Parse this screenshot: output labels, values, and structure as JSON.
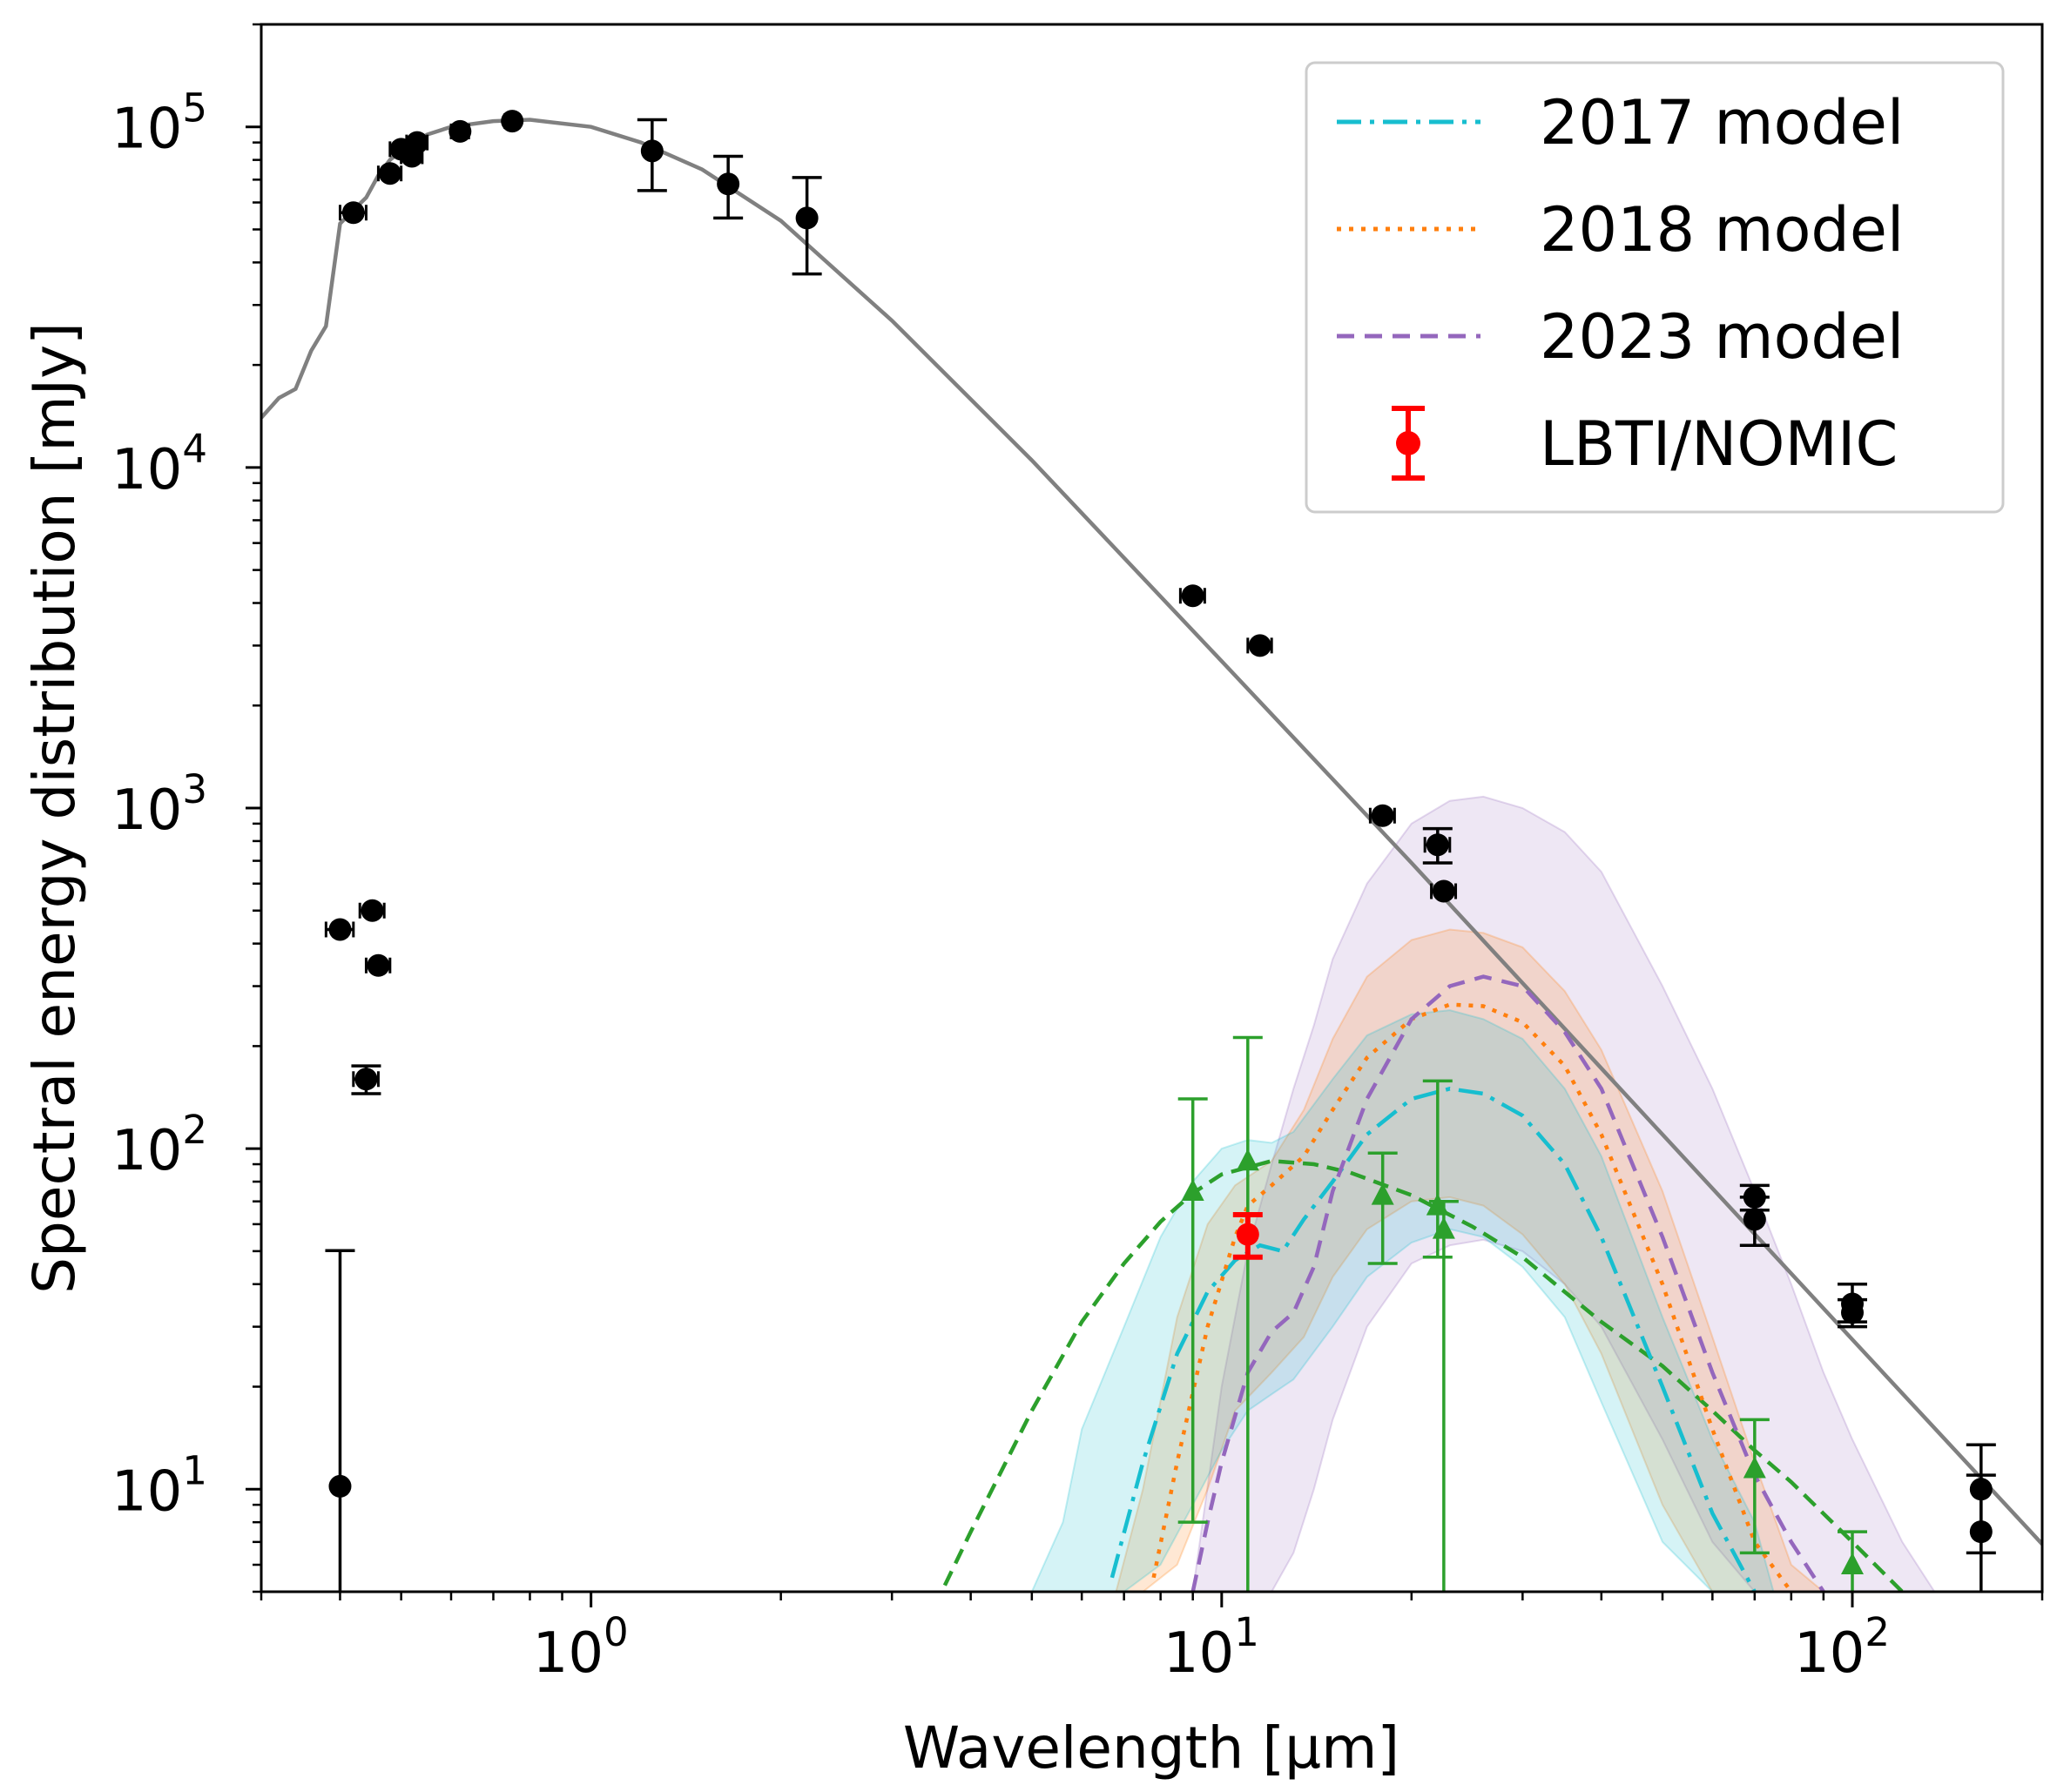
{
  "chart_data": {
    "type": "scatter",
    "title": "",
    "xlabel": "Wavelength [μm]",
    "ylabel": "Spectral energy distribution [mJy]",
    "xscale": "log",
    "yscale": "log",
    "xlim": [
      0.3,
      200
    ],
    "ylim": [
      5,
      200000
    ],
    "grid": false,
    "legend_position": "top-right",
    "x_ticks": [
      {
        "value": 1,
        "base": "10",
        "exp": "0"
      },
      {
        "value": 10,
        "base": "10",
        "exp": "1"
      },
      {
        "value": 100,
        "base": "10",
        "exp": "2"
      }
    ],
    "y_ticks": [
      {
        "value": 10,
        "base": "10",
        "exp": "1"
      },
      {
        "value": 100,
        "base": "10",
        "exp": "2"
      },
      {
        "value": 1000,
        "base": "10",
        "exp": "3"
      },
      {
        "value": 10000,
        "base": "10",
        "exp": "4"
      },
      {
        "value": 100000,
        "base": "10",
        "exp": "5"
      }
    ],
    "colors": {
      "photosphere": "#808080",
      "photometry": "#000000",
      "model_2017": "#17becf",
      "model_2018": "#ff7f0e",
      "model_2023": "#9467bd",
      "lbti": "#ff0000",
      "excess": "#2ca02c"
    },
    "legend": [
      {
        "label": "2017 model",
        "style": "dashdot",
        "color": "#17becf"
      },
      {
        "label": "2018 model",
        "style": "dotted",
        "color": "#ff7f0e"
      },
      {
        "label": "2023 model",
        "style": "dashed",
        "color": "#9467bd"
      },
      {
        "label": "LBTI/NOMIC",
        "style": "errorbar",
        "color": "#ff0000"
      }
    ],
    "photosphere": {
      "x": [
        0.3,
        0.32,
        0.34,
        0.36,
        0.38,
        0.4,
        0.42,
        0.44,
        0.46,
        0.48,
        0.5,
        0.55,
        0.6,
        0.7,
        0.8,
        1.0,
        1.2,
        1.5,
        2.0,
        3.0,
        5.0,
        10.0,
        20.0,
        50.0,
        100.0,
        200.0
      ],
      "y": [
        14000,
        16000,
        17000,
        22000,
        26000,
        52000,
        57000,
        62000,
        72000,
        80000,
        85000,
        95000,
        100000,
        104000,
        105000,
        100000,
        90000,
        75000,
        53000,
        27000,
        10500,
        2700,
        690,
        110,
        27.5,
        6.9
      ]
    },
    "photometry": [
      {
        "x": 0.4,
        "y": 10.2,
        "yerr_lo": 9.5,
        "yerr_hi": 40,
        "xerr": 0
      },
      {
        "x": 0.4,
        "y": 440,
        "yerr_lo": 0,
        "yerr_hi": 0,
        "xerr": 0.02
      },
      {
        "x": 0.42,
        "y": 56000,
        "yerr_lo": 0,
        "yerr_hi": 0,
        "xerr": 0.02
      },
      {
        "x": 0.44,
        "y": 160,
        "yerr_lo": 15,
        "yerr_hi": 15,
        "xerr": 0.02
      },
      {
        "x": 0.45,
        "y": 500,
        "yerr_lo": 0,
        "yerr_hi": 0,
        "xerr": 0.02
      },
      {
        "x": 0.46,
        "y": 345,
        "yerr_lo": 0,
        "yerr_hi": 0,
        "xerr": 0.02
      },
      {
        "x": 0.48,
        "y": 73000,
        "yerr_lo": 0,
        "yerr_hi": 0,
        "xerr": 0.02
      },
      {
        "x": 0.5,
        "y": 86000,
        "yerr_lo": 0,
        "yerr_hi": 0,
        "xerr": 0.02
      },
      {
        "x": 0.52,
        "y": 82000,
        "yerr_lo": 0,
        "yerr_hi": 0,
        "xerr": 0.02
      },
      {
        "x": 0.53,
        "y": 90000,
        "yerr_lo": 0,
        "yerr_hi": 0,
        "xerr": 0.02
      },
      {
        "x": 0.62,
        "y": 97000,
        "yerr_lo": 0,
        "yerr_hi": 0,
        "xerr": 0.02
      },
      {
        "x": 0.75,
        "y": 104000,
        "yerr_lo": 0,
        "yerr_hi": 0,
        "xerr": 0.02
      },
      {
        "x": 1.25,
        "y": 85000,
        "yerr_lo": 20000,
        "yerr_hi": 20000,
        "xerr": 0
      },
      {
        "x": 1.65,
        "y": 68000,
        "yerr_lo": 14000,
        "yerr_hi": 14000,
        "xerr": 0
      },
      {
        "x": 2.2,
        "y": 54000,
        "yerr_lo": 17000,
        "yerr_hi": 17000,
        "xerr": 0
      },
      {
        "x": 9.0,
        "y": 4200,
        "yerr_lo": 0,
        "yerr_hi": 0,
        "xerr": 0.4
      },
      {
        "x": 11.5,
        "y": 3000,
        "yerr_lo": 0,
        "yerr_hi": 0,
        "xerr": 0.5
      },
      {
        "x": 18.0,
        "y": 950,
        "yerr_lo": 0,
        "yerr_hi": 0,
        "xerr": 0.8
      },
      {
        "x": 22.0,
        "y": 780,
        "yerr_lo": 90,
        "yerr_hi": 90,
        "xerr": 1.0
      },
      {
        "x": 22.5,
        "y": 570,
        "yerr_lo": 0,
        "yerr_hi": 0,
        "xerr": 1.0
      },
      {
        "x": 70,
        "y": 72,
        "yerr_lo": 6,
        "yerr_hi": 6,
        "xerr": 0
      },
      {
        "x": 70,
        "y": 62,
        "yerr_lo": 10,
        "yerr_hi": 10,
        "xerr": 0
      },
      {
        "x": 100,
        "y": 35,
        "yerr_lo": 4,
        "yerr_hi": 5,
        "xerr": 0
      },
      {
        "x": 100,
        "y": 33,
        "yerr_lo": 3,
        "yerr_hi": 3,
        "xerr": 0
      },
      {
        "x": 160,
        "y": 10,
        "yerr_lo": 3.5,
        "yerr_hi": 3.5,
        "xerr": 0
      },
      {
        "x": 160,
        "y": 7.5,
        "yerr_lo": 3.5,
        "yerr_hi": 3.5,
        "xerr": 0
      }
    ],
    "lbti": {
      "x": 11.0,
      "y": 56,
      "yerr_lo": 8,
      "yerr_hi": 8
    },
    "excess": [
      {
        "x": 9.0,
        "y": 75,
        "yerr_lo": 67,
        "yerr_hi": 65
      },
      {
        "x": 11.0,
        "y": 92,
        "yerr_lo": 90,
        "yerr_hi": 120
      },
      {
        "x": 18.0,
        "y": 73,
        "yerr_lo": 27,
        "yerr_hi": 24
      },
      {
        "x": 22.0,
        "y": 68,
        "yerr_lo": 20,
        "yerr_hi": 90
      },
      {
        "x": 22.5,
        "y": 58,
        "yerr_lo": 56,
        "yerr_hi": 12
      },
      {
        "x": 70,
        "y": 11.5,
        "yerr_lo": 5,
        "yerr_hi": 4.5
      },
      {
        "x": 100,
        "y": 6,
        "yerr_lo": 1.5,
        "yerr_hi": 1.5
      }
    ],
    "excess_fit": {
      "x": [
        3.5,
        4.0,
        5.0,
        6.0,
        7.0,
        8.0,
        9.0,
        10.0,
        12.0,
        14.0,
        16.0,
        20.0,
        25.0,
        30.0,
        40.0,
        50.0,
        60.0,
        70.0,
        80.0,
        100.0,
        120.0
      ],
      "y": [
        4.5,
        7.5,
        17,
        31,
        46,
        61,
        74,
        84,
        92,
        90,
        85,
        73,
        59,
        48,
        31,
        23,
        17,
        13,
        10.5,
        7,
        5
      ]
    },
    "models": [
      {
        "name": "2017 model",
        "x": [
          6.7,
          7.5,
          8.5,
          9.5,
          10.5,
          11.5,
          12.5,
          13.5,
          15,
          17,
          20,
          23,
          26,
          30,
          35,
          40,
          50,
          60,
          70
        ],
        "y": [
          5.5,
          12,
          25,
          38,
          47,
          52,
          50,
          62,
          80,
          110,
          140,
          150,
          145,
          125,
          90,
          55,
          20,
          8.5,
          5
        ],
        "lo": [
          5,
          5,
          6,
          9,
          13,
          17,
          19,
          24,
          33,
          45,
          55,
          58,
          55,
          45,
          32,
          18,
          7,
          5,
          5
        ],
        "hi": [
          5,
          15,
          45,
          80,
          100,
          105,
          102,
          130,
          170,
          220,
          250,
          255,
          240,
          210,
          150,
          95,
          32,
          14,
          8
        ],
        "band_x": [
          5.0,
          5.6,
          6.0,
          7.0,
          8.0,
          9.0,
          10.0,
          11.0,
          12.0,
          13.0,
          15.0,
          17.0,
          20.0,
          23.0,
          26.0,
          30.0,
          35.0,
          40.0,
          50.0,
          60.0,
          70.0,
          75.0
        ],
        "band_lo": [
          5,
          5,
          5,
          5,
          6,
          9,
          13,
          17,
          19,
          21,
          30,
          42,
          53,
          58,
          55,
          45,
          32,
          18,
          7,
          5,
          5,
          5
        ],
        "band_hi": [
          5,
          8,
          15,
          30,
          55,
          80,
          100,
          106,
          104,
          112,
          160,
          215,
          248,
          255,
          240,
          210,
          150,
          95,
          32,
          14,
          8,
          5
        ]
      },
      {
        "name": "2018 model",
        "x": [
          7.8,
          8.5,
          9.5,
          10.5,
          11.0,
          12.0,
          13.5,
          15,
          17,
          20,
          23,
          26,
          30,
          35,
          40,
          50,
          60,
          70,
          80
        ],
        "y": [
          5.5,
          12,
          30,
          55,
          68,
          78,
          95,
          130,
          185,
          240,
          265,
          262,
          235,
          175,
          110,
          40,
          15,
          7,
          5
        ],
        "band_x": [
          6.8,
          7.5,
          8.5,
          9.5,
          10.5,
          12.0,
          13.5,
          15,
          17,
          20,
          23,
          26,
          30,
          35,
          40,
          50,
          60,
          70,
          80,
          90
        ],
        "band_lo": [
          5,
          5,
          6,
          10,
          17,
          22,
          28,
          42,
          58,
          70,
          72,
          68,
          56,
          40,
          25,
          9,
          5,
          5,
          5,
          5
        ],
        "band_hi": [
          5,
          10,
          32,
          60,
          78,
          92,
          130,
          210,
          320,
          410,
          440,
          430,
          390,
          290,
          195,
          75,
          28,
          12,
          6,
          5
        ]
      },
      {
        "name": "2023 model",
        "x": [
          9.0,
          9.5,
          10.0,
          11.0,
          12.0,
          13.0,
          14.0,
          15.0,
          17.0,
          20.0,
          23.0,
          26.0,
          30.0,
          35.0,
          40.0,
          50.0,
          60.0,
          70.0,
          80.0,
          90.0
        ],
        "y": [
          5,
          8,
          12,
          22,
          29,
          33,
          45,
          75,
          140,
          240,
          300,
          320,
          300,
          220,
          150,
          55,
          22,
          11,
          7,
          5
        ],
        "band_x": [
          9.0,
          10.0,
          11.0,
          12.0,
          13.0,
          14.0,
          15.0,
          17.0,
          20.0,
          23.0,
          26.0,
          30.0,
          35.0,
          40.0,
          50.0,
          60.0,
          70.0,
          80.0,
          90.0,
          100.0,
          120.0,
          135.0
        ],
        "band_lo": [
          5,
          5,
          5,
          5,
          6.5,
          10,
          16,
          30,
          46,
          52,
          54,
          50,
          40,
          30,
          14,
          7,
          5,
          5,
          5,
          5,
          5,
          5
        ],
        "band_hi": [
          5,
          20,
          50,
          90,
          150,
          230,
          360,
          600,
          900,
          1050,
          1080,
          1000,
          850,
          650,
          300,
          150,
          75,
          40,
          22,
          14,
          7,
          5
        ]
      }
    ]
  }
}
